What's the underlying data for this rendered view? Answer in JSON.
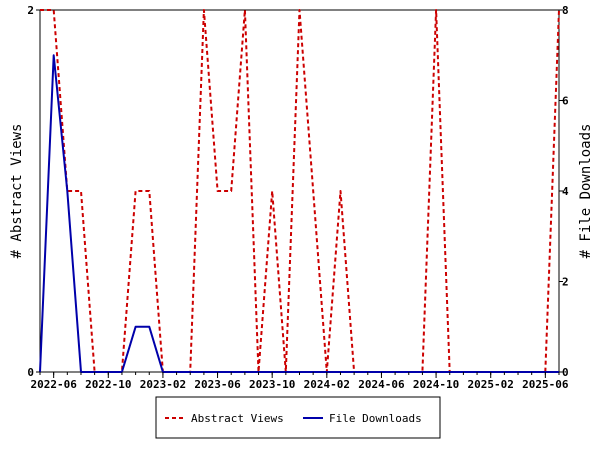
{
  "chart_data": {
    "type": "line",
    "x": [
      "2022-05",
      "2022-06",
      "2022-07",
      "2022-08",
      "2022-09",
      "2022-10",
      "2022-11",
      "2022-12",
      "2023-01",
      "2023-02",
      "2023-03",
      "2023-04",
      "2023-05",
      "2023-06",
      "2023-07",
      "2023-08",
      "2023-09",
      "2023-10",
      "2023-11",
      "2023-12",
      "2024-01",
      "2024-02",
      "2024-03",
      "2024-04",
      "2024-05",
      "2024-06",
      "2024-07",
      "2024-08",
      "2024-09",
      "2024-10",
      "2024-11",
      "2024-12",
      "2025-01",
      "2025-02",
      "2025-03",
      "2025-04",
      "2025-05",
      "2025-06",
      "2025-07"
    ],
    "x_tick_labels": [
      "2022-06",
      "2022-10",
      "2023-02",
      "2023-06",
      "2023-10",
      "2024-02",
      "2024-06",
      "2024-10",
      "2025-02",
      "2025-06"
    ],
    "ylabel_left": "# Abstract Views",
    "ylabel_right": "# File Downloads",
    "ylim_left": [
      0,
      2
    ],
    "ylim_right": [
      0,
      8
    ],
    "yticks_left": [
      "0",
      "2"
    ],
    "yticks_right": [
      "0",
      "2",
      "4",
      "6",
      "8"
    ],
    "grid": false,
    "legend_position": "bottom",
    "series": [
      {
        "name": "Abstract Views",
        "axis": "left",
        "style": "dashed",
        "color": "#cc0000",
        "values": [
          2,
          2,
          1,
          1,
          0,
          0,
          0,
          1,
          1,
          0,
          0,
          0,
          2,
          1,
          1,
          2,
          0,
          1,
          0,
          2,
          1,
          0,
          1,
          0,
          0,
          0,
          0,
          0,
          0,
          2,
          0,
          0,
          0,
          0,
          0,
          0,
          0,
          0,
          2
        ]
      },
      {
        "name": "File Downloads",
        "axis": "right",
        "style": "solid",
        "color": "#0000aa",
        "values": [
          0,
          7,
          4,
          0,
          0,
          0,
          0,
          1,
          1,
          0,
          0,
          0,
          0,
          0,
          0,
          0,
          0,
          0,
          0,
          0,
          0,
          0,
          0,
          0,
          0,
          0,
          0,
          0,
          0,
          0,
          0,
          0,
          0,
          0,
          0,
          0,
          0,
          0,
          0
        ]
      }
    ]
  }
}
